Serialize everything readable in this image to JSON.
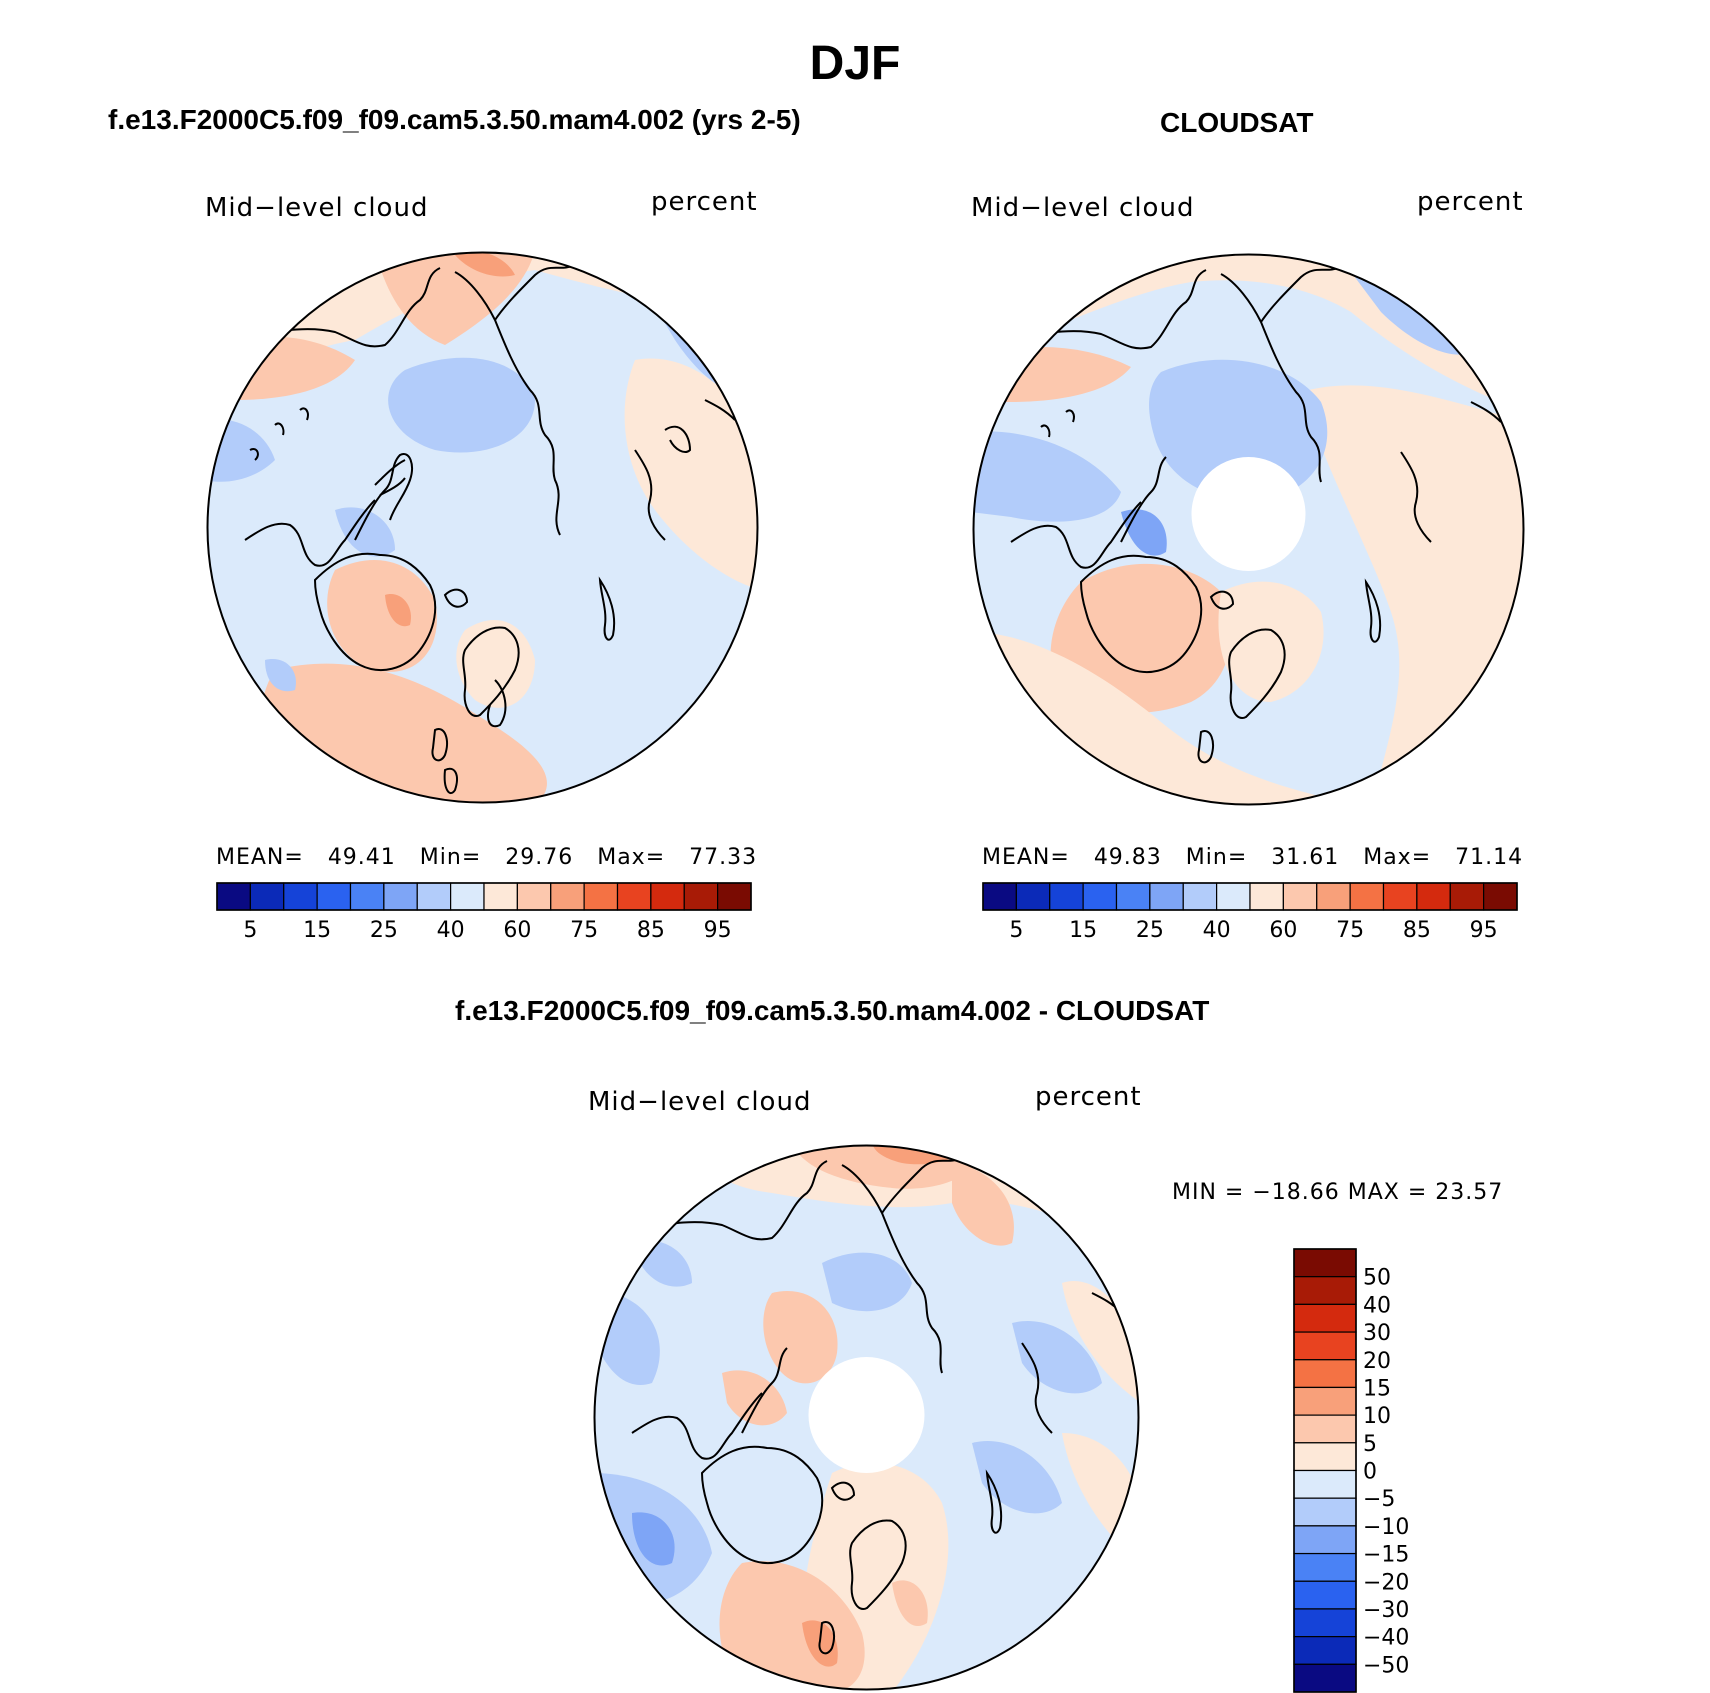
{
  "title": "DJF",
  "panels": [
    {
      "id": "model",
      "header": "f.e13.F2000C5.f09_f09.cam5.3.50.mam4.002 (yrs 2-5)",
      "variable": "Mid−level cloud",
      "units": "percent",
      "stats": {
        "mean_label": "MEAN=",
        "mean": "49.41",
        "min_label": "Min=",
        "min": "29.76",
        "max_label": "Max=",
        "max": "77.33"
      },
      "has_polar_hole": false
    },
    {
      "id": "obs",
      "header": "CLOUDSAT",
      "variable": "Mid−level cloud",
      "units": "percent",
      "stats": {
        "mean_label": "MEAN=",
        "mean": "49.83",
        "min_label": "Min=",
        "min": "31.61",
        "max_label": "Max=",
        "max": "71.14"
      },
      "has_polar_hole": true
    },
    {
      "id": "diff",
      "header": "f.e13.F2000C5.f09_f09.cam5.3.50.mam4.002 - CLOUDSAT",
      "variable": "Mid−level cloud",
      "units": "percent",
      "stats": {
        "text": "MIN = −18.66 MAX =   23.57"
      },
      "has_polar_hole": true
    }
  ],
  "colorbar_abs": {
    "orientation": "horizontal",
    "colors": [
      "#0a0a82",
      "#0b2ab8",
      "#1543d8",
      "#2a62f0",
      "#4a82f5",
      "#7ea5f6",
      "#b2ccfa",
      "#dbeafb",
      "#fde8d8",
      "#fcc8ae",
      "#f8a07a",
      "#f47244",
      "#e84320",
      "#d42a0e",
      "#a81b06",
      "#7a0b02"
    ],
    "tick_labels": [
      "5",
      "15",
      "25",
      "40",
      "60",
      "75",
      "85",
      "95"
    ]
  },
  "colorbar_diff": {
    "orientation": "vertical",
    "colors": [
      "#7a0b02",
      "#a81b06",
      "#d42a0e",
      "#e84320",
      "#f47244",
      "#f8a07a",
      "#fcc8ae",
      "#fde8d8",
      "#dbeafb",
      "#b2ccfa",
      "#7ea5f6",
      "#4a82f5",
      "#2a62f0",
      "#1543d8",
      "#0b2ab8",
      "#0a0a82"
    ],
    "tick_labels": [
      "50",
      "40",
      "30",
      "20",
      "15",
      "10",
      "5",
      "0",
      "−5",
      "−10",
      "−15",
      "−20",
      "−30",
      "−40",
      "−50"
    ]
  },
  "map_colors": {
    "ocean_blue": "#dbeafb",
    "light_blue": "#b2ccfa",
    "mid_blue": "#7ea5f6",
    "strong_blue": "#4a82f5",
    "cream": "#fde8d8",
    "peach": "#fcc8ae",
    "salmon": "#f8a07a",
    "orange": "#f47244"
  }
}
